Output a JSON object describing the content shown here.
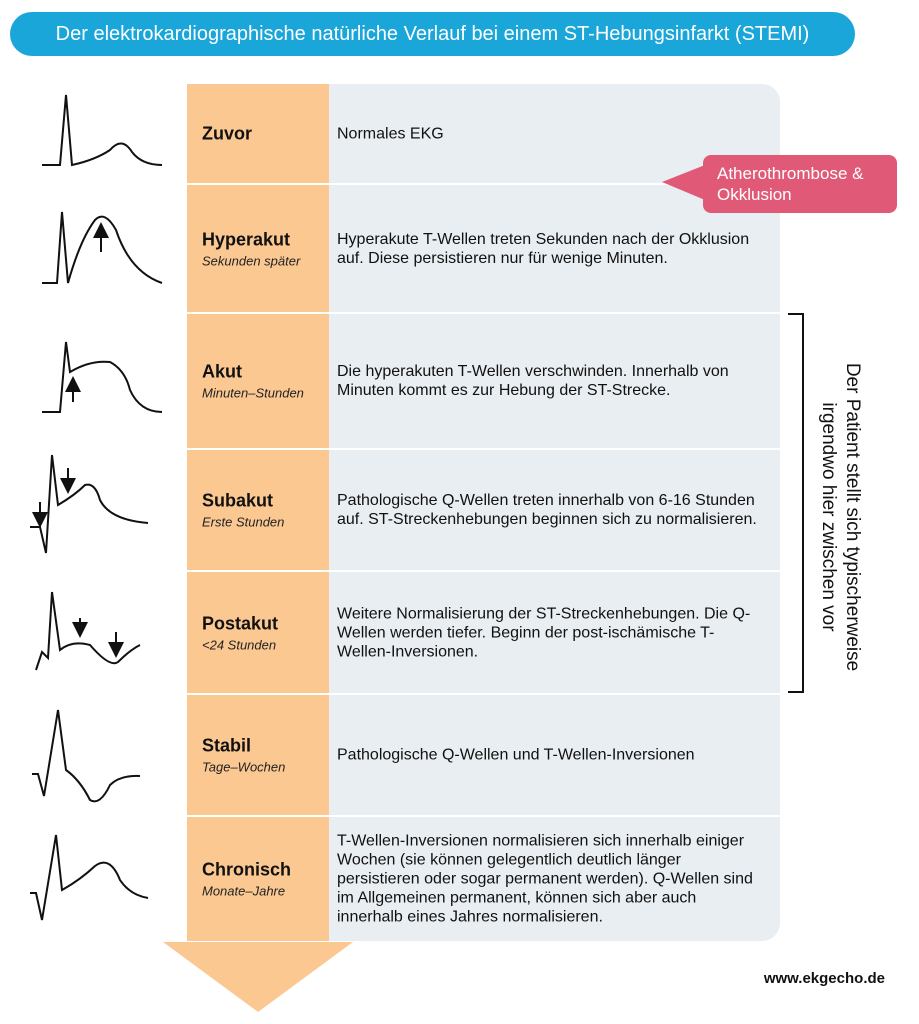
{
  "header": {
    "title": "Der elektrokardiographische natürliche Verlauf bei einem ST-Hebungsinfarkt (STEMI)"
  },
  "rows": [
    {
      "stage": "Zuvor",
      "description": "Normales EKG"
    },
    {
      "stage": "Hyperakut",
      "time": "Sekunden später",
      "description": "Hyperakute T-Wellen treten Sekunden nach der Okklusion auf. Diese persistieren nur für wenige Minuten."
    },
    {
      "stage": "Akut",
      "time": "Minuten–Stunden",
      "description": "Die hyperakuten T-Wellen verschwinden. Innerhalb von Minuten kommt es zur Hebung der ST-Strecke."
    },
    {
      "stage": "Subakut",
      "time": "Erste Stunden",
      "description": "Pathologische Q-Wellen treten innerhalb von 6-16 Stunden auf. ST-Streckenhebungen beginnen sich zu normalisieren."
    },
    {
      "stage": "Postakut",
      "time": "<24 Stunden",
      "description": "Weitere Normalisierung der ST-Streckenhebungen. Die Q-Wellen werden tiefer. Beginn der post-ischämische T-Wellen-Inversionen."
    },
    {
      "stage": "Stabil",
      "time": "Tage–Wochen",
      "description": "Pathologische Q-Wellen und T-Wellen-Inversionen"
    },
    {
      "stage": "Chronisch",
      "time": "Monate–Jahre",
      "description": "T-Wellen-Inversionen normalisieren sich innerhalb einiger Wochen (sie können gelegentlich deutlich länger persistieren oder sogar permanent werden). Q-Wellen sind im Allgemeinen permanent, können sich aber auch innerhalb eines Jahres normalisieren."
    }
  ],
  "callout": "Atherothrombose & Okklusion",
  "bracket_note": "Der Patient stellt sich typischerweise irgendwo hier zwischen vor",
  "footer": "www.ekgecho.de"
}
